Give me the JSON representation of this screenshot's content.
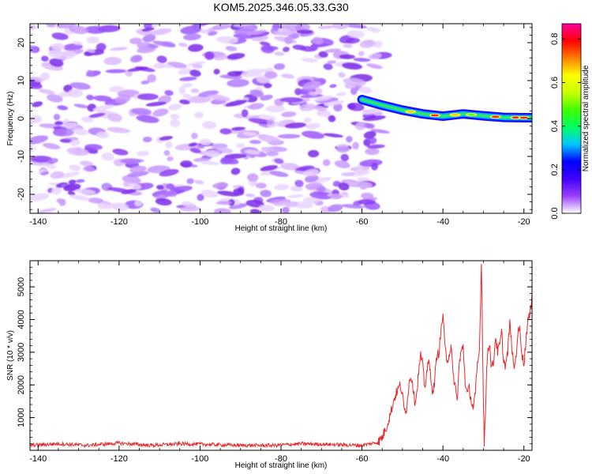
{
  "title": "KOM5.2025.346.05.33.G30",
  "chart_data": [
    {
      "type": "heatmap",
      "name": "spectrogram",
      "xlabel": "Height of straight line (km)",
      "ylabel": "Frequency (Hz)",
      "xlim": [
        -142,
        -18
      ],
      "ylim": [
        -25,
        25
      ],
      "xticks": [
        -140,
        -120,
        -100,
        -80,
        -60,
        -40,
        -20
      ],
      "xtick_labels": [
        "-140",
        "-120",
        "-100",
        "-80",
        "-60",
        "-40",
        "-20"
      ],
      "yticks": [
        -20,
        -10,
        0,
        10,
        20
      ],
      "ytick_labels": [
        "-20",
        "-10",
        "0",
        "10",
        "20"
      ],
      "noise_region_km": [
        -142,
        -55
      ],
      "signal_track": {
        "x": [
          -60,
          -55,
          -50,
          -45,
          -40,
          -35,
          -30,
          -25,
          -20,
          -18
        ],
        "freq": [
          5,
          3.5,
          2.2,
          1.2,
          0.6,
          1.2,
          0.7,
          0.3,
          0.2,
          0.2
        ]
      },
      "colorbar": {
        "label": "Normalized spectral amplitude",
        "range": [
          0.0,
          0.87
        ],
        "ticks": [
          0.0,
          0.2,
          0.4,
          0.6,
          0.8
        ],
        "tick_labels": [
          "0.0",
          "0.2",
          "0.4",
          "0.6",
          "0.8"
        ],
        "colors": [
          "#ffffff",
          "#9a40ff",
          "#4000ff",
          "#0000ff",
          "#00c8ff",
          "#00ff60",
          "#40ff00",
          "#c8ff00",
          "#ffff00",
          "#ff8000",
          "#ff0000",
          "#ff00a0"
        ]
      }
    },
    {
      "type": "line",
      "name": "snr",
      "xlabel": "Height of straight line (km)",
      "ylabel": "SNR (10 * v/v)",
      "xlim": [
        -142,
        -18
      ],
      "ylim": [
        0,
        5800
      ],
      "xticks": [
        -140,
        -120,
        -100,
        -80,
        -60,
        -40,
        -20
      ],
      "xtick_labels": [
        "-140",
        "-120",
        "-100",
        "-80",
        "-60",
        "-40",
        "-20"
      ],
      "yticks": [
        1000,
        2000,
        3000,
        4000,
        5000
      ],
      "ytick_labels": [
        "1000",
        "2000",
        "3000",
        "4000",
        "5000"
      ],
      "color": "#e8282a",
      "series": [
        {
          "name": "SNR",
          "x": [
            -142,
            -135,
            -128,
            -120,
            -112,
            -105,
            -98,
            -90,
            -82,
            -75,
            -68,
            -60,
            -56,
            -55,
            -54,
            -53,
            -52,
            -51,
            -50.5,
            -50,
            -49.5,
            -49,
            -48.5,
            -48,
            -47.5,
            -47,
            -46.5,
            -46,
            -45.5,
            -45,
            -44.5,
            -44,
            -43.5,
            -43,
            -42.5,
            -42,
            -41.5,
            -41,
            -40.5,
            -40,
            -39.5,
            -39,
            -38.5,
            -38,
            -37.5,
            -37,
            -36.5,
            -36,
            -35.5,
            -35,
            -34.5,
            -34,
            -33.5,
            -33,
            -32.5,
            -32,
            -31.5,
            -31,
            -30.7,
            -30.5,
            -30.2,
            -30,
            -29.8,
            -29.5,
            -29.2,
            -29,
            -28.5,
            -28,
            -27.5,
            -27,
            -26.5,
            -26,
            -25.5,
            -25,
            -24.5,
            -24,
            -23.5,
            -23,
            -22.5,
            -22,
            -21.5,
            -21,
            -20.5,
            -20,
            -19.5,
            -19,
            -18.5,
            -18
          ],
          "values": [
            150,
            200,
            150,
            220,
            150,
            200,
            180,
            150,
            150,
            200,
            180,
            150,
            250,
            400,
            700,
            1100,
            1600,
            1900,
            2000,
            1650,
            1200,
            1300,
            1900,
            2300,
            2100,
            1500,
            1700,
            2400,
            2900,
            2600,
            1900,
            2400,
            2700,
            2300,
            1700,
            2200,
            2900,
            3000,
            3600,
            4200,
            3100,
            2800,
            2900,
            3200,
            2300,
            2000,
            1500,
            2600,
            3000,
            3200,
            2100,
            1700,
            1900,
            1500,
            1300,
            1700,
            2600,
            3000,
            4700,
            5800,
            3200,
            1500,
            250,
            1100,
            2400,
            3000,
            3300,
            2500,
            2700,
            3500,
            3000,
            3200,
            3600,
            2700,
            2600,
            3000,
            3900,
            3200,
            2500,
            2800,
            3600,
            3700,
            3000,
            2600,
            3400,
            4000,
            4100,
            4800
          ]
        }
      ]
    }
  ]
}
